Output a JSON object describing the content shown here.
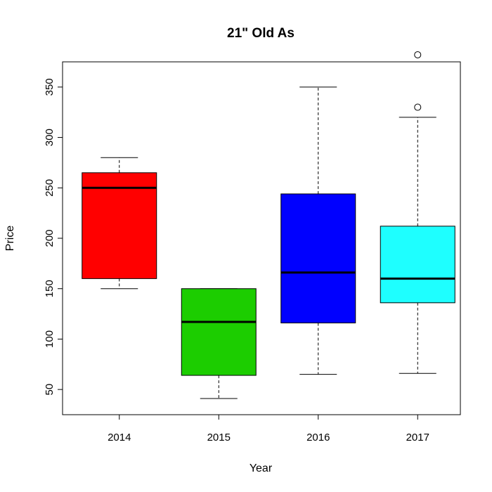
{
  "chart_data": {
    "type": "boxplot",
    "title": "21\" Old As",
    "xlabel": "Year",
    "ylabel": "Price",
    "categories": [
      "2014",
      "2015",
      "2016",
      "2017"
    ],
    "ylim": [
      25,
      375
    ],
    "yticks": [
      "50",
      "100",
      "150",
      "200",
      "250",
      "300",
      "350"
    ],
    "grid": false,
    "legend": "none",
    "boxes": [
      {
        "category": "2014",
        "color": "#ff0000",
        "whisker_low": 150,
        "q1": 160,
        "median": 250,
        "q3": 265,
        "whisker_high": 280,
        "outliers": []
      },
      {
        "category": "2015",
        "color": "#1ccd00",
        "whisker_low": 41,
        "q1": 64,
        "median": 117,
        "q3": 150,
        "whisker_high": 150,
        "outliers": []
      },
      {
        "category": "2016",
        "color": "#0000ff",
        "whisker_low": 65,
        "q1": 116,
        "median": 166,
        "q3": 244,
        "whisker_high": 350,
        "outliers": []
      },
      {
        "category": "2017",
        "color": "#1effff",
        "whisker_low": 66,
        "q1": 136,
        "median": 160,
        "q3": 212,
        "whisker_high": 320,
        "outliers": [
          330,
          382
        ]
      }
    ]
  }
}
